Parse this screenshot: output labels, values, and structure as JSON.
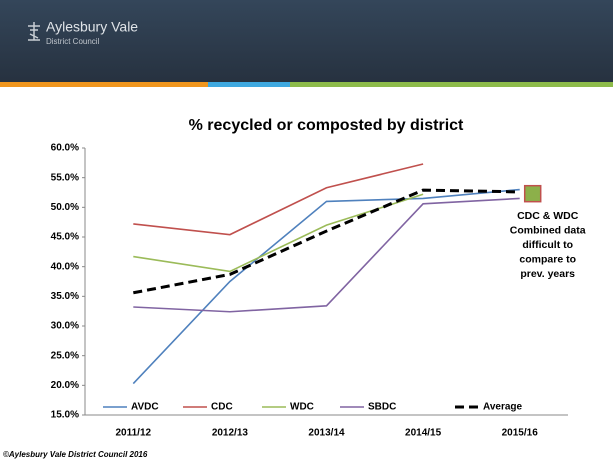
{
  "header": {
    "org_name": "Aylesbury Vale",
    "org_sub": "District Council"
  },
  "footer": "©Aylesbury Vale District Council 2016",
  "chart_data": {
    "type": "line",
    "title": "% recycled or composted by district",
    "categories": [
      "2011/12",
      "2012/13",
      "2013/14",
      "2014/15",
      "2015/16"
    ],
    "series": [
      {
        "name": "AVDC",
        "color": "#4f81bd",
        "values": [
          20.3,
          37.5,
          51.0,
          51.5,
          53.0
        ]
      },
      {
        "name": "CDC",
        "color": "#c0504d",
        "values": [
          47.2,
          45.4,
          53.3,
          57.3,
          null
        ]
      },
      {
        "name": "WDC",
        "color": "#9bbb59",
        "values": [
          41.7,
          39.2,
          47.0,
          52.2,
          null
        ]
      },
      {
        "name": "SBDC",
        "color": "#8064a2",
        "values": [
          33.2,
          32.4,
          33.4,
          50.6,
          51.5
        ]
      },
      {
        "name": "Average",
        "color": "#000000",
        "dashed": true,
        "values": [
          35.6,
          38.7,
          46.0,
          52.9,
          52.6
        ]
      }
    ],
    "ylim": [
      15,
      60
    ],
    "yticks": [
      {
        "value": 15,
        "label": "15.0%"
      },
      {
        "value": 20,
        "label": "20.0%"
      },
      {
        "value": 25,
        "label": "25.0%"
      },
      {
        "value": 30,
        "label": "30.0%"
      },
      {
        "value": 35,
        "label": "35.0%"
      },
      {
        "value": 40,
        "label": "40.0%"
      },
      {
        "value": 45,
        "label": "45.0%"
      },
      {
        "value": 50,
        "label": "50.0%"
      },
      {
        "value": 55,
        "label": "55.0%"
      },
      {
        "value": 60,
        "label": "60.0%"
      }
    ],
    "annotation": {
      "lines": [
        "CDC & WDC",
        "Combined data",
        "difficult to",
        "compare to",
        "prev. years"
      ],
      "value": 52.3,
      "color": "#8cb04a"
    },
    "legend": "bottom"
  }
}
